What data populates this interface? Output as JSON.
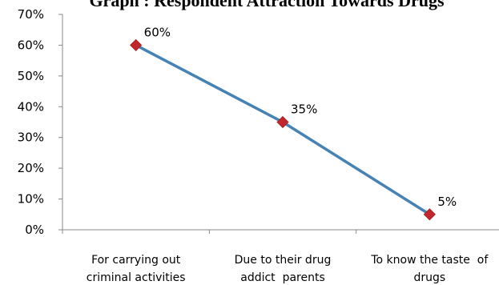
{
  "chart_data": {
    "type": "line",
    "title": "Graph : Respondent Attraction Towards Drugs",
    "xlabel": "",
    "ylabel": "",
    "categories": [
      [
        "For carrying out",
        "criminal activities"
      ],
      [
        "Due to their drug",
        "addict  parents"
      ],
      [
        "To know the taste  of",
        "drugs"
      ]
    ],
    "series": [
      {
        "values": [
          60,
          35,
          5
        ],
        "data_labels": [
          "60%",
          "35%",
          "5%"
        ],
        "line_color": "#4682b4",
        "marker_color": "#c0282d",
        "marker": "diamond"
      }
    ],
    "ylim": [
      0,
      70
    ],
    "yticks": [
      0,
      10,
      20,
      30,
      40,
      50,
      60,
      70
    ],
    "ytick_labels": [
      "0%",
      "10%",
      "20%",
      "30%",
      "40%",
      "50%",
      "60%",
      "70%"
    ],
    "grid": false,
    "legend": "none",
    "colors": {
      "axis": "#888888",
      "text": "#000000"
    }
  }
}
